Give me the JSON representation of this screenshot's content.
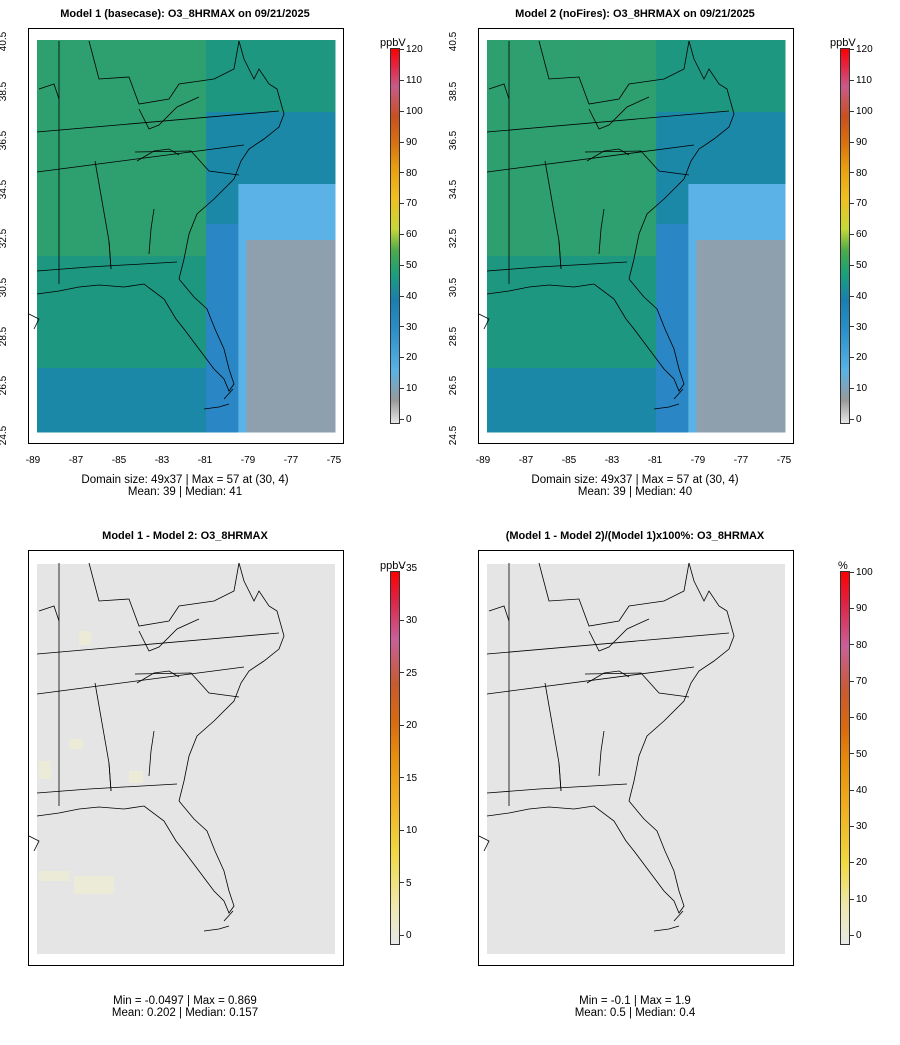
{
  "panels": {
    "p1": {
      "title": "Model 1 (basecase): O3_8HRMAX on 09/21/2025",
      "stats_line1": "Domain size: 49x37 | Max = 57 at (30, 4)",
      "stats_line2": "Mean: 39 |  Median: 41",
      "unit": "ppbV"
    },
    "p2": {
      "title": "Model 2 (noFires): O3_8HRMAX on 09/21/2025",
      "stats_line1": "Domain size: 49x37 | Max = 57 at (30, 4)",
      "stats_line2": "Mean: 39 |  Median: 40",
      "unit": "ppbV"
    },
    "p3": {
      "title": "Model 1 - Model 2: O3_8HRMAX",
      "stats_line1": "Min = -0.0497 | Max = 0.869",
      "stats_line2": "Mean: 0.202 |  Median: 0.157",
      "unit": "ppbV"
    },
    "p4": {
      "title": "(Model 1 - Model 2)/(Model 1)x100%: O3_8HRMAX",
      "stats_line1": "Min = -0.1 | Max = 1.9",
      "stats_line2": "Mean: 0.5 |  Median: 0.4",
      "unit": "%"
    }
  },
  "chart_data": [
    {
      "type": "heatmap",
      "title": "Model 1 (basecase): O3_8HRMAX on 09/21/2025",
      "x_ticks": [
        "-89",
        "-87",
        "-85",
        "-83",
        "-81",
        "-79",
        "-77",
        "-75"
      ],
      "y_ticks": [
        "24.5",
        "26.5",
        "28.5",
        "30.5",
        "32.5",
        "34.5",
        "36.5",
        "38.5",
        "40.5"
      ],
      "xlim": [
        -89,
        -75
      ],
      "ylim": [
        24.5,
        40.5
      ],
      "colorbar": {
        "unit": "ppbV",
        "ticks": [
          "0",
          "10",
          "20",
          "30",
          "40",
          "50",
          "60",
          "70",
          "80",
          "90",
          "100",
          "110",
          "120"
        ],
        "range": [
          0,
          120
        ]
      },
      "domain_size": "49x37",
      "max": 57,
      "max_at": [
        30,
        4
      ],
      "mean": 39,
      "median": 41
    },
    {
      "type": "heatmap",
      "title": "Model 2 (noFires): O3_8HRMAX on 09/21/2025",
      "x_ticks": [
        "-89",
        "-87",
        "-85",
        "-83",
        "-81",
        "-79",
        "-77",
        "-75"
      ],
      "y_ticks": [
        "24.5",
        "26.5",
        "28.5",
        "30.5",
        "32.5",
        "34.5",
        "36.5",
        "38.5",
        "40.5"
      ],
      "xlim": [
        -89,
        -75
      ],
      "ylim": [
        24.5,
        40.5
      ],
      "colorbar": {
        "unit": "ppbV",
        "ticks": [
          "0",
          "10",
          "20",
          "30",
          "40",
          "50",
          "60",
          "70",
          "80",
          "90",
          "100",
          "110",
          "120"
        ],
        "range": [
          0,
          120
        ]
      },
      "domain_size": "49x37",
      "max": 57,
      "max_at": [
        30,
        4
      ],
      "mean": 39,
      "median": 40
    },
    {
      "type": "heatmap",
      "title": "Model 1 - Model 2: O3_8HRMAX",
      "colorbar": {
        "unit": "ppbV",
        "ticks": [
          "0",
          "5",
          "10",
          "15",
          "20",
          "25",
          "30",
          "35"
        ],
        "range": [
          0,
          35
        ]
      },
      "min": -0.0497,
      "max": 0.869,
      "mean": 0.202,
      "median": 0.157
    },
    {
      "type": "heatmap",
      "title": "(Model 1 - Model 2)/(Model 1)x100%: O3_8HRMAX",
      "colorbar": {
        "unit": "%",
        "ticks": [
          "0",
          "10",
          "20",
          "30",
          "40",
          "50",
          "60",
          "70",
          "80",
          "90",
          "100"
        ],
        "range": [
          0,
          100
        ]
      },
      "min": -0.1,
      "max": 1.9,
      "mean": 0.5,
      "median": 0.4
    }
  ]
}
